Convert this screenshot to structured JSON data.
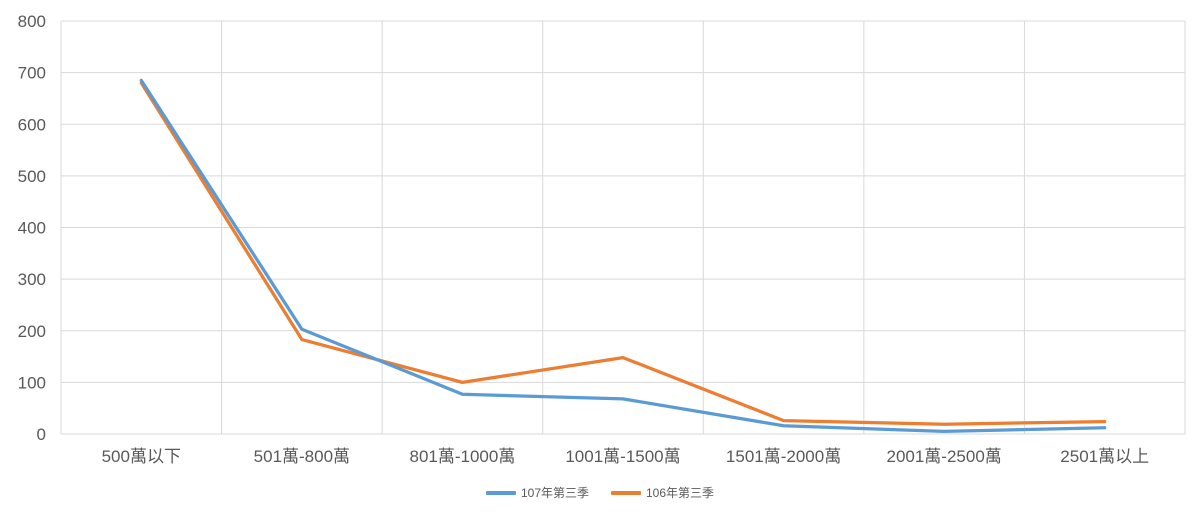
{
  "colors": {
    "background": "#ffffff",
    "gridline": "#d9d9d9",
    "axis_text": "#595959",
    "series_blue": "#5b9bd5",
    "series_orange": "#ed7d31"
  },
  "chart_data": {
    "type": "line",
    "title": "",
    "xlabel": "",
    "ylabel": "",
    "categories": [
      "500萬以下",
      "501萬-800萬",
      "801萬-1000萬",
      "1001萬-1500萬",
      "1501萬-2000萬",
      "2001萬-2500萬",
      "2501萬以上"
    ],
    "series": [
      {
        "name": "107年第三季",
        "color": "#5b9bd5",
        "values": [
          685,
          203,
          77,
          68,
          16,
          5,
          12
        ]
      },
      {
        "name": "106年第三季",
        "color": "#ed7d31",
        "values": [
          680,
          183,
          100,
          148,
          26,
          19,
          24
        ]
      }
    ],
    "ylim": [
      0,
      800
    ],
    "y_ticks": [
      0,
      100,
      200,
      300,
      400,
      500,
      600,
      700,
      800
    ],
    "grid": true,
    "grid_vertical": true,
    "legend_position": "bottom-center"
  }
}
